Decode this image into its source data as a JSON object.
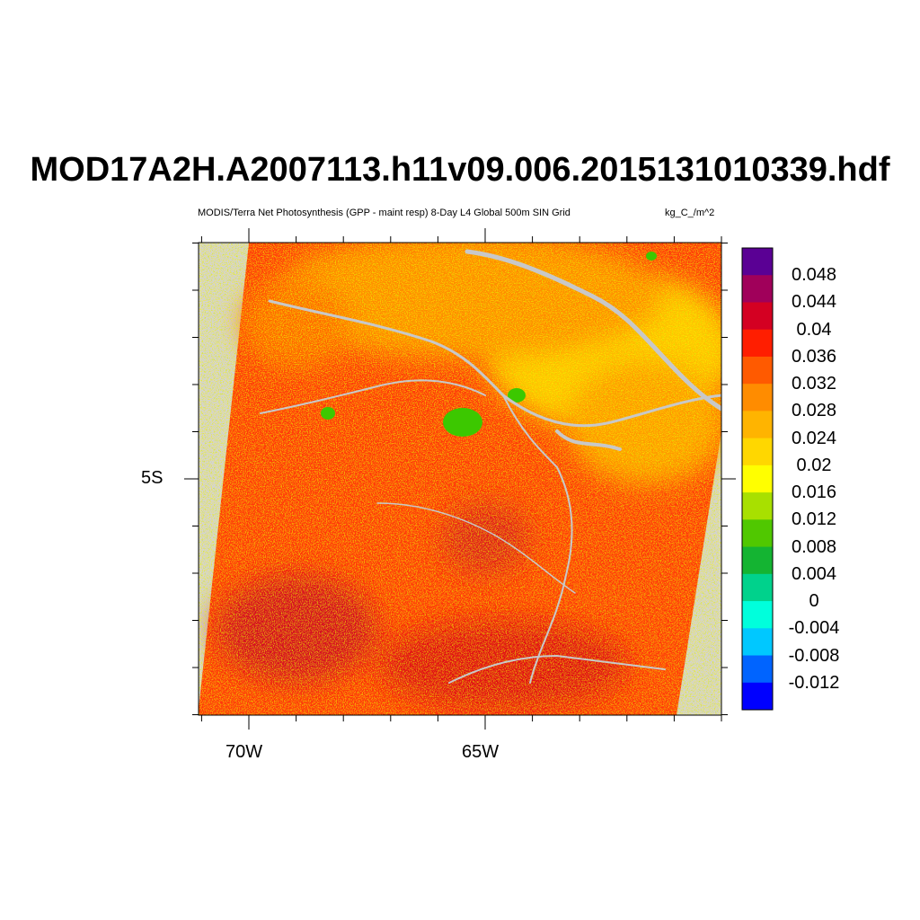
{
  "title": "MOD17A2H.A2007113.h11v09.006.2015131010339.hdf",
  "subtitle": "MODIS/Terra Net Photosynthesis (GPP - maint resp) 8-Day L4 Global 500m SIN Grid",
  "units": "kg_C_/m^2",
  "axes": {
    "x_ticks": [
      {
        "label": "70W",
        "value": -70
      },
      {
        "label": "65W",
        "value": -65
      }
    ],
    "y_ticks": [
      {
        "label": "5S",
        "value": -5
      }
    ]
  },
  "colorbar": {
    "colors": [
      "#5a0094",
      "#a0005a",
      "#d40022",
      "#ff1e00",
      "#ff5a00",
      "#ff8c00",
      "#ffb400",
      "#ffd700",
      "#ffff00",
      "#a8e000",
      "#50c800",
      "#14b432",
      "#00d28c",
      "#00ffdc",
      "#00c8ff",
      "#0064ff",
      "#0000ff"
    ],
    "labels": [
      "0.048",
      "0.044",
      "0.04",
      "0.036",
      "0.032",
      "0.028",
      "0.024",
      "0.02",
      "0.016",
      "0.012",
      "0.008",
      "0.004",
      "0",
      "-0.004",
      "-0.008",
      "-0.012"
    ]
  }
}
